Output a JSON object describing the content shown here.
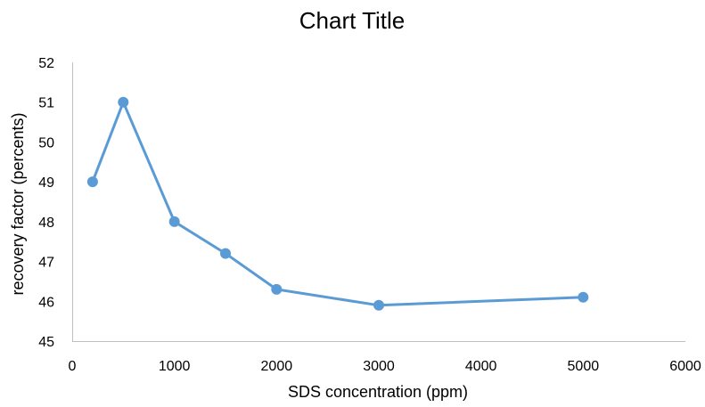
{
  "chart_data": {
    "type": "scatter",
    "title": "Chart Title",
    "xlabel": "SDS concentration (ppm)",
    "ylabel": "recovery factor (percents)",
    "xlim": [
      0,
      6000
    ],
    "ylim": [
      45,
      52
    ],
    "x_ticks": [
      0,
      1000,
      2000,
      3000,
      4000,
      5000,
      6000
    ],
    "y_ticks": [
      45,
      46,
      47,
      48,
      49,
      50,
      51,
      52
    ],
    "grid": false,
    "legend": "none",
    "series": [
      {
        "x": [
          200,
          500,
          1000,
          1500,
          2000,
          3000,
          5000
        ],
        "values": [
          49,
          51,
          48,
          47.2,
          46.3,
          45.9,
          46.1
        ],
        "color": "#5b9bd5",
        "marker": "circle",
        "line": "straight"
      }
    ]
  }
}
